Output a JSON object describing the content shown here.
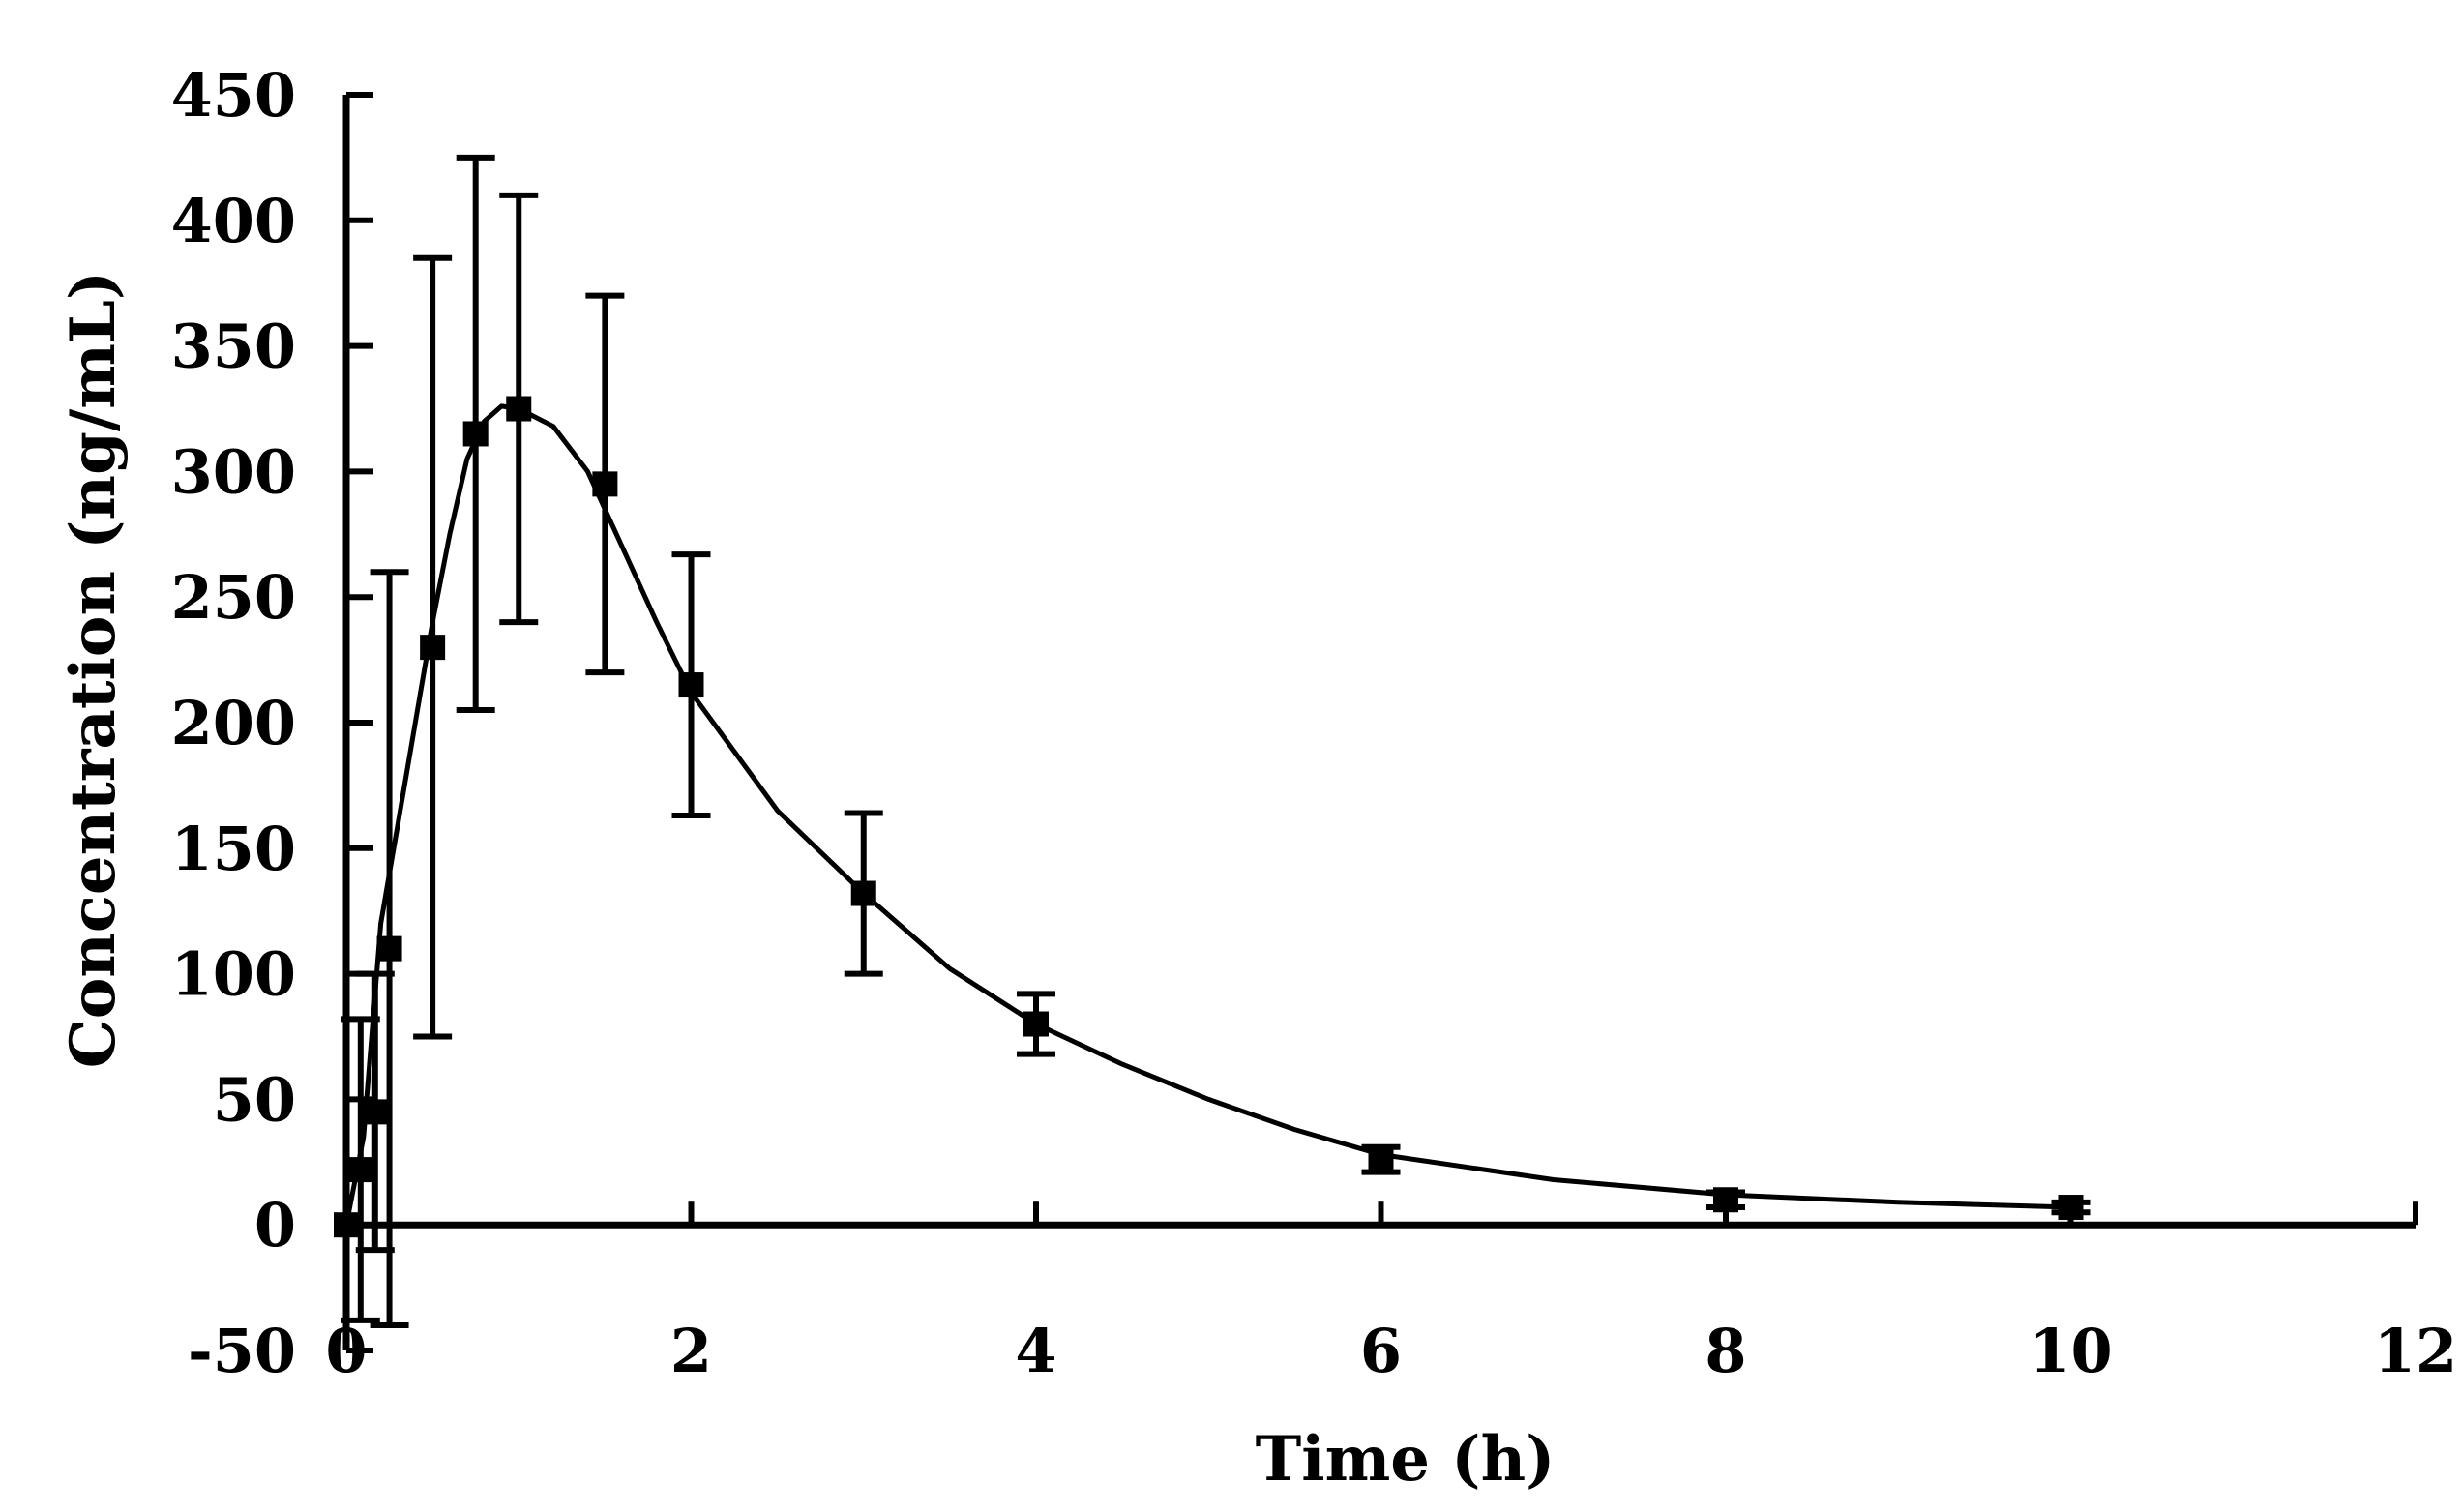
{
  "chart_data": {
    "type": "scatter",
    "xlabel": "Time (h)",
    "ylabel": "Concentration (ng/mL)",
    "xlim": [
      0,
      12
    ],
    "ylim": [
      -50,
      450
    ],
    "x_ticks": [
      0,
      2,
      4,
      6,
      8,
      10,
      12
    ],
    "y_ticks": [
      -50,
      0,
      50,
      100,
      150,
      200,
      250,
      300,
      350,
      400,
      450
    ],
    "x_tick_labels": [
      "0",
      "2",
      "4",
      "6",
      "8",
      "10",
      "12"
    ],
    "y_tick_labels": [
      "-50",
      "0",
      "50",
      "100",
      "150",
      "200",
      "250",
      "300",
      "350",
      "400",
      "450"
    ],
    "grid": false,
    "legend": false,
    "series": [
      {
        "x": [
          0,
          0.083,
          0.167,
          0.25,
          0.5,
          0.75,
          1.0,
          1.5,
          2.0,
          3.0,
          4.0,
          6.0,
          8.0,
          10.0
        ],
        "y": [
          0,
          22,
          45,
          110,
          230,
          315,
          325,
          295,
          215,
          132,
          80,
          26,
          10,
          7
        ],
        "y_err": [
          0,
          60,
          55,
          150,
          155,
          110,
          85,
          75,
          52,
          32,
          12,
          5,
          3,
          2
        ],
        "fitted_curve": {
          "x": [
            0,
            0.1,
            0.2,
            0.3,
            0.4,
            0.5,
            0.6,
            0.7,
            0.8,
            0.9,
            1.0,
            1.2,
            1.4,
            1.6,
            1.8,
            2.0,
            2.5,
            3.0,
            3.5,
            4.0,
            4.5,
            5.0,
            5.5,
            6.0,
            7.0,
            8.0,
            9.0,
            10.0
          ],
          "y": [
            0,
            35,
            120,
            160,
            200,
            240,
            275,
            305,
            320,
            326,
            325,
            318,
            300,
            270,
            240,
            212,
            165,
            132,
            102,
            80,
            64,
            50,
            38,
            28,
            18,
            12,
            9,
            7
          ]
        }
      }
    ]
  }
}
